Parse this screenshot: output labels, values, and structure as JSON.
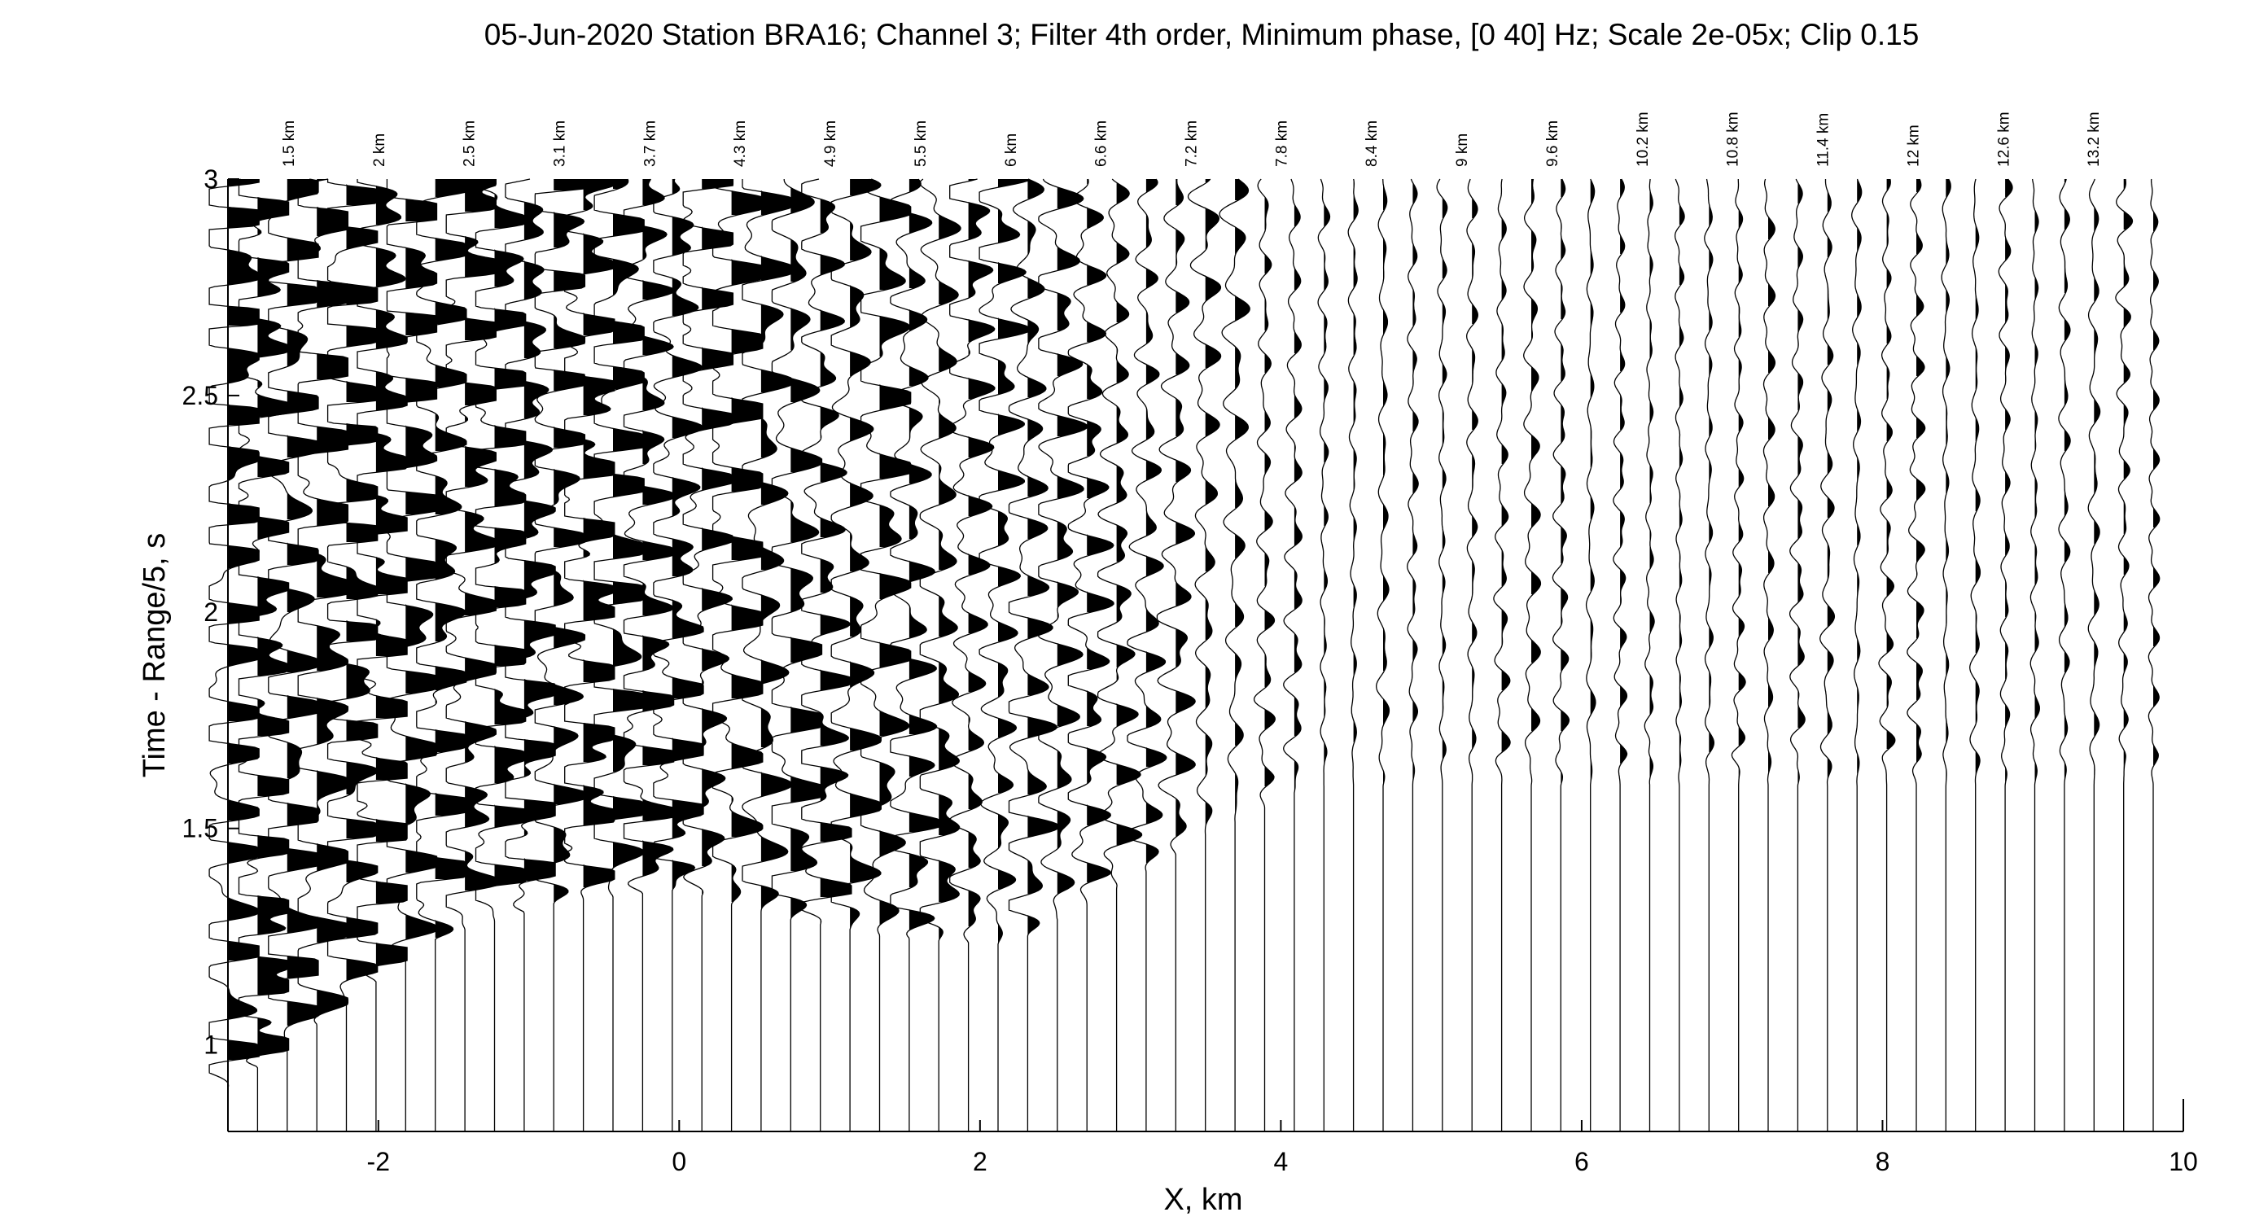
{
  "chart_data": {
    "type": "seismic-record-section",
    "title": "05-Jun-2020 Station BRA16; Channel 3; Filter 4th order, Minimum phase,  [0  40] Hz; Scale 2e-05x; Clip 0.15",
    "xlabel": "X, km",
    "ylabel": "Time - Range/5, s",
    "xlim": [
      -3,
      10
    ],
    "ylim": [
      0.8,
      3
    ],
    "x_ticks": [
      -2,
      0,
      2,
      4,
      6,
      8,
      10
    ],
    "x_tick_labels": [
      "-2",
      "0",
      "2",
      "4",
      "6",
      "8",
      "10"
    ],
    "y_ticks": [
      1,
      1.5,
      2,
      2.5,
      3
    ],
    "y_tick_labels": [
      "1",
      "1.5",
      "2",
      "2.5",
      "3"
    ],
    "range_labels": [
      "1.5 km",
      "2 km",
      "2.5 km",
      "3.1 km",
      "3.7 km",
      "4.3 km",
      "4.9 km",
      "5.5 km",
      "6 km",
      "6.6 km",
      "7.2 km",
      "7.8 km",
      "8.4 km",
      "9 km",
      "9.6 km",
      "10.2 km",
      "10.8 km",
      "11.4 km",
      "12 km",
      "12.6 km",
      "13.2 km"
    ],
    "range_label_x": [
      -2.6,
      -2.0,
      -1.4,
      -0.8,
      -0.2,
      0.4,
      1.0,
      1.6,
      2.2,
      2.8,
      3.4,
      4.0,
      4.6,
      5.2,
      5.8,
      6.4,
      7.0,
      7.6,
      8.2,
      8.8,
      9.4
    ],
    "trace_count": 66,
    "trace_x_start": -3.0,
    "trace_x_end": 9.8,
    "first_arrival": {
      "x": [
        -3.0,
        -2.4,
        -1.6,
        -0.8,
        0.0,
        0.6,
        1.4,
        2.2,
        3.0,
        3.6,
        4.2,
        9.8
      ],
      "t": [
        0.9,
        1.05,
        1.25,
        1.33,
        1.36,
        1.3,
        1.25,
        1.23,
        1.38,
        1.5,
        1.6,
        1.6
      ]
    },
    "clip": 0.15,
    "scale": "2e-05x"
  }
}
